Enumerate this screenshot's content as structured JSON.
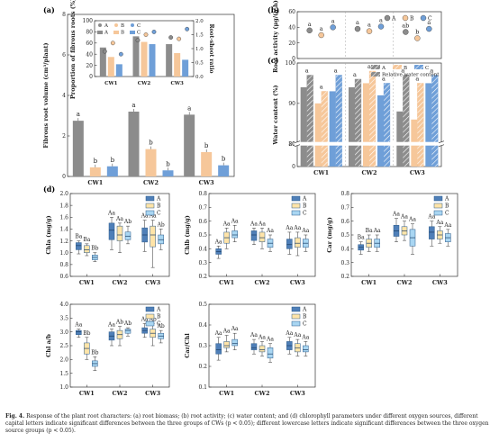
{
  "caption": {
    "prefix": "Fig. 4.",
    "text": "Response of the plant root characters: (a) root biomass; (b) root activity; (c) water content; and (d) chlorophyll parameters under different oxygen sources, different capital letters indicate significant differences between the three groups of CWs (p < 0.05); different lowercase letters indicate significant differences between the three oxygen source groups (p < 0.05)."
  },
  "colors": {
    "A": "#8c8c8c",
    "B": "#f6c79a",
    "C": "#6f9fd8",
    "boxA": "#4f7fb8",
    "boxB": "#ffe4a8",
    "boxC": "#a9d6f2"
  },
  "panels": [
    "(a)",
    "(b)",
    "(c)",
    "(d)"
  ],
  "chart_data": [
    {
      "id": "a",
      "type": "bar",
      "ylabel": "Fibrous root volume (cm³/plant)",
      "ylim": [
        0,
        8
      ],
      "yticks": [
        0,
        2,
        4,
        6,
        8
      ],
      "categories": [
        "CW1",
        "CW2",
        "CW3"
      ],
      "series": [
        {
          "name": "A",
          "values": [
            2.75,
            3.2,
            3.05
          ],
          "labels": [
            "a",
            "a",
            "a"
          ]
        },
        {
          "name": "B",
          "values": [
            0.45,
            1.35,
            1.2
          ],
          "labels": [
            "b",
            "b",
            "b"
          ]
        },
        {
          "name": "C",
          "values": [
            0.5,
            0.3,
            0.55
          ],
          "labels": [
            "b",
            "b",
            "b"
          ]
        }
      ]
    },
    {
      "id": "a-inset",
      "type": "bar",
      "ylabel": "Proportion of fibrous roots (%)",
      "y2label": "Root-shoot ratio",
      "ylim": [
        0,
        100
      ],
      "yticks": [
        0,
        20,
        40,
        60,
        80,
        100
      ],
      "y2lim": [
        0,
        2.0
      ],
      "y2ticks": [
        0.0,
        0.5,
        1.0,
        1.5,
        2.0
      ],
      "categories": [
        "CW1",
        "CW2",
        "CW3"
      ],
      "legend": [
        "A",
        "B",
        "C",
        "A",
        "B",
        "C"
      ],
      "series": [
        {
          "name": "A",
          "values": [
            52,
            72,
            58
          ]
        },
        {
          "name": "B",
          "values": [
            35,
            62,
            42
          ]
        },
        {
          "name": "C",
          "values": [
            22,
            58,
            30
          ]
        }
      ],
      "ratio_series": [
        {
          "name": "A",
          "values": [
            0.9,
            1.3,
            1.4
          ]
        },
        {
          "name": "B",
          "values": [
            1.2,
            1.5,
            1.35
          ]
        },
        {
          "name": "C",
          "values": [
            0.8,
            1.6,
            1.7
          ]
        }
      ]
    },
    {
      "id": "b",
      "type": "scatter",
      "ylabel": "Root activity (μg/(g·h))",
      "ylim": [
        0,
        60
      ],
      "yticks": [
        0,
        20,
        40,
        60
      ],
      "categories": [
        "CW1",
        "CW2",
        "CW3"
      ],
      "legend": [
        "A",
        "B",
        "C"
      ],
      "series": [
        {
          "name": "A",
          "values": [
            36,
            38,
            34
          ],
          "labels": [
            "a",
            "a",
            "ab"
          ]
        },
        {
          "name": "B",
          "values": [
            30,
            35,
            26
          ],
          "labels": [
            "a",
            "a",
            "b"
          ]
        },
        {
          "name": "C",
          "values": [
            40,
            41,
            38
          ],
          "labels": [
            "a",
            "a",
            "a"
          ]
        }
      ]
    },
    {
      "id": "c",
      "type": "bar",
      "ylabel": "Water content (%)",
      "ylim": [
        0,
        100
      ],
      "yticks": [
        0,
        20,
        80,
        90,
        100
      ],
      "categories": [
        "CW1",
        "CW2",
        "CW3"
      ],
      "legend": [
        "A",
        "B",
        "C",
        "Relative water content"
      ],
      "series": [
        {
          "name": "A",
          "values": [
            94,
            94,
            88
          ]
        },
        {
          "name": "B",
          "values": [
            90,
            95,
            86
          ]
        },
        {
          "name": "C",
          "values": [
            93,
            92,
            95
          ]
        }
      ],
      "rwc_series": [
        {
          "name": "A",
          "values": [
            97,
            96,
            97
          ],
          "labels": [
            "a",
            "a",
            "a"
          ]
        },
        {
          "name": "B",
          "values": [
            93,
            98,
            95
          ],
          "labels": [
            "a",
            "a",
            "a"
          ]
        },
        {
          "name": "C",
          "values": [
            97,
            95,
            97
          ],
          "labels": [
            "a",
            "a",
            "a"
          ]
        }
      ]
    },
    {
      "id": "d-chla",
      "type": "box",
      "ylabel": "Chla (mg/g)",
      "ylim": [
        0.6,
        2.0
      ],
      "yticks": [
        0.6,
        0.8,
        1.0,
        1.2,
        1.4,
        1.6,
        1.8,
        2.0
      ],
      "categories": [
        "CW1",
        "CW2",
        "CW3"
      ],
      "legend": [
        "A",
        "B",
        "C"
      ],
      "series": [
        {
          "name": "A",
          "boxes": [
            [
              0.98,
              1.05,
              1.12,
              1.17,
              1.2
            ],
            [
              1.05,
              1.22,
              1.38,
              1.5,
              1.6
            ],
            [
              1.02,
              1.18,
              1.3,
              1.42,
              1.55
            ]
          ],
          "labels": [
            "Ba",
            "Aa",
            "Aa"
          ]
        },
        {
          "name": "B",
          "boxes": [
            [
              0.95,
              1.0,
              1.05,
              1.12,
              1.15
            ],
            [
              1.0,
              1.2,
              1.3,
              1.45,
              1.5
            ],
            [
              0.75,
              1.1,
              1.3,
              1.45,
              1.55
            ]
          ],
          "labels": [
            "Ba",
            "Aa",
            "Aa"
          ]
        },
        {
          "name": "C",
          "boxes": [
            [
              0.85,
              0.88,
              0.92,
              0.96,
              1.0
            ],
            [
              1.15,
              1.22,
              1.28,
              1.35,
              1.45
            ],
            [
              1.05,
              1.15,
              1.22,
              1.3,
              1.4
            ]
          ],
          "labels": [
            "Bb",
            "Ab",
            "Ab"
          ]
        }
      ]
    },
    {
      "id": "d-chlb",
      "type": "box",
      "ylabel": "Chlb (mg/g)",
      "ylim": [
        0.2,
        0.8
      ],
      "yticks": [
        0.2,
        0.3,
        0.4,
        0.5,
        0.6,
        0.7,
        0.8
      ],
      "categories": [
        "CW1",
        "CW2",
        "CW3"
      ],
      "legend": [
        "A",
        "B",
        "C"
      ],
      "series": [
        {
          "name": "A",
          "boxes": [
            [
              0.33,
              0.36,
              0.38,
              0.4,
              0.42
            ],
            [
              0.43,
              0.46,
              0.5,
              0.53,
              0.55
            ],
            [
              0.36,
              0.4,
              0.43,
              0.47,
              0.52
            ]
          ],
          "labels": [
            "Aa",
            "Aa",
            "Aa"
          ]
        },
        {
          "name": "B",
          "boxes": [
            [
              0.4,
              0.44,
              0.48,
              0.52,
              0.55
            ],
            [
              0.4,
              0.45,
              0.48,
              0.52,
              0.55
            ],
            [
              0.35,
              0.41,
              0.44,
              0.48,
              0.52
            ]
          ],
          "labels": [
            "Aa",
            "Aa",
            "Aa"
          ]
        },
        {
          "name": "C",
          "boxes": [
            [
              0.45,
              0.48,
              0.5,
              0.53,
              0.57
            ],
            [
              0.38,
              0.41,
              0.44,
              0.47,
              0.5
            ],
            [
              0.38,
              0.41,
              0.44,
              0.47,
              0.5
            ]
          ],
          "labels": [
            "Aa",
            "Aa",
            "Aa"
          ]
        }
      ]
    },
    {
      "id": "d-car",
      "type": "box",
      "ylabel": "Car (mg/g)",
      "ylim": [
        0.2,
        0.8
      ],
      "yticks": [
        0.2,
        0.3,
        0.4,
        0.5,
        0.6,
        0.7,
        0.8
      ],
      "categories": [
        "CW1",
        "CW2",
        "CW3"
      ],
      "legend": [
        "A",
        "B",
        "C"
      ],
      "series": [
        {
          "name": "A",
          "boxes": [
            [
              0.36,
              0.39,
              0.41,
              0.43,
              0.45
            ],
            [
              0.45,
              0.49,
              0.53,
              0.57,
              0.62
            ],
            [
              0.42,
              0.47,
              0.52,
              0.56,
              0.6
            ]
          ],
          "labels": [
            "Ba",
            "Aa",
            "Aa"
          ]
        },
        {
          "name": "B",
          "boxes": [
            [
              0.38,
              0.41,
              0.44,
              0.47,
              0.5
            ],
            [
              0.46,
              0.5,
              0.53,
              0.56,
              0.6
            ],
            [
              0.44,
              0.47,
              0.5,
              0.53,
              0.56
            ]
          ],
          "labels": [
            "Ba",
            "Aa",
            "Aa"
          ]
        },
        {
          "name": "C",
          "boxes": [
            [
              0.38,
              0.41,
              0.44,
              0.47,
              0.5
            ],
            [
              0.36,
              0.42,
              0.48,
              0.54,
              0.58
            ],
            [
              0.42,
              0.45,
              0.48,
              0.51,
              0.54
            ]
          ],
          "labels": [
            "Aa",
            "Aa",
            "Aa"
          ]
        }
      ]
    },
    {
      "id": "d-chlab",
      "type": "box",
      "ylabel": "Chl a/b",
      "ylim": [
        1.0,
        4.0
      ],
      "yticks": [
        1.0,
        1.5,
        2.0,
        2.5,
        3.0,
        3.5,
        4.0
      ],
      "categories": [
        "CW1",
        "CW2",
        "CW3"
      ],
      "legend": [
        "A",
        "B",
        "C"
      ],
      "series": [
        {
          "name": "A",
          "boxes": [
            [
              2.8,
              2.9,
              3.0,
              3.05,
              3.1
            ],
            [
              2.5,
              2.7,
              2.85,
              3.0,
              3.1
            ],
            [
              2.8,
              2.95,
              3.05,
              3.15,
              3.3
            ]
          ],
          "labels": [
            "Aa",
            "Aa",
            "Aa"
          ]
        },
        {
          "name": "B",
          "boxes": [
            [
              2.0,
              2.2,
              2.4,
              2.6,
              2.8
            ],
            [
              2.5,
              2.75,
              2.9,
              3.05,
              3.2
            ],
            [
              2.5,
              2.8,
              2.95,
              3.1,
              3.3
            ]
          ],
          "labels": [
            "Bb",
            "Ab",
            "Ab"
          ]
        },
        {
          "name": "C",
          "boxes": [
            [
              1.6,
              1.75,
              1.85,
              1.95,
              2.1
            ],
            [
              2.85,
              2.95,
              3.05,
              3.1,
              3.15
            ],
            [
              2.6,
              2.75,
              2.85,
              2.95,
              3.05
            ]
          ],
          "labels": [
            "Bb",
            "Ab",
            "Ab"
          ]
        }
      ]
    },
    {
      "id": "d-carchl",
      "type": "box",
      "ylabel": "Car/Chl",
      "ylim": [
        0.1,
        0.5
      ],
      "yticks": [
        0.1,
        0.2,
        0.3,
        0.4,
        0.5
      ],
      "categories": [
        "CW1",
        "CW2",
        "CW3"
      ],
      "legend": [
        "A",
        "B",
        "C"
      ],
      "series": [
        {
          "name": "A",
          "boxes": [
            [
              0.23,
              0.26,
              0.28,
              0.31,
              0.34
            ],
            [
              0.26,
              0.28,
              0.29,
              0.31,
              0.33
            ],
            [
              0.26,
              0.28,
              0.3,
              0.32,
              0.34
            ]
          ],
          "labels": [
            "Aa",
            "Aa",
            "Aa"
          ]
        },
        {
          "name": "B",
          "boxes": [
            [
              0.27,
              0.29,
              0.3,
              0.32,
              0.35
            ],
            [
              0.25,
              0.27,
              0.28,
              0.3,
              0.32
            ],
            [
              0.25,
              0.27,
              0.29,
              0.31,
              0.33
            ]
          ],
          "labels": [
            "Aa",
            "Aa",
            "Aa"
          ]
        },
        {
          "name": "C",
          "boxes": [
            [
              0.28,
              0.3,
              0.31,
              0.33,
              0.36
            ],
            [
              0.22,
              0.24,
              0.26,
              0.29,
              0.31
            ],
            [
              0.25,
              0.27,
              0.28,
              0.3,
              0.32
            ]
          ],
          "labels": [
            "Aa",
            "Aa",
            "Aa"
          ]
        }
      ]
    }
  ]
}
